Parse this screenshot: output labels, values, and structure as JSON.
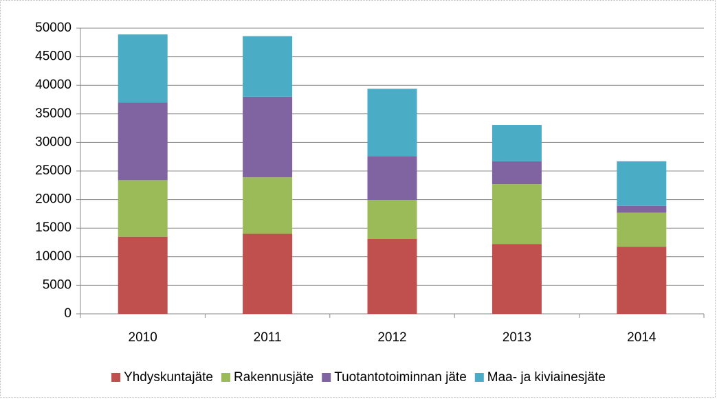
{
  "chart_data": {
    "type": "stacked_bar",
    "categories": [
      "2010",
      "2011",
      "2012",
      "2013",
      "2014"
    ],
    "series": [
      {
        "name": "Yhdyskuntajäte",
        "color": "#c0504d",
        "values": [
          13500,
          14000,
          13100,
          12200,
          11750
        ]
      },
      {
        "name": "Rakennusjäte",
        "color": "#9bbb59",
        "values": [
          9900,
          9900,
          6850,
          10500,
          5950
        ]
      },
      {
        "name": "Tuotantotoiminnan jäte",
        "color": "#8064a2",
        "values": [
          13600,
          14100,
          7650,
          4000,
          1200
        ]
      },
      {
        "name": "Maa- ja kiviainesjäte",
        "color": "#4bacc6",
        "values": [
          11900,
          10600,
          11800,
          6350,
          7800
        ]
      }
    ],
    "ylim": [
      0,
      50000
    ],
    "yticks": [
      0,
      5000,
      10000,
      15000,
      20000,
      25000,
      30000,
      35000,
      40000,
      45000,
      50000
    ],
    "grid": true,
    "legend": "bottom"
  }
}
